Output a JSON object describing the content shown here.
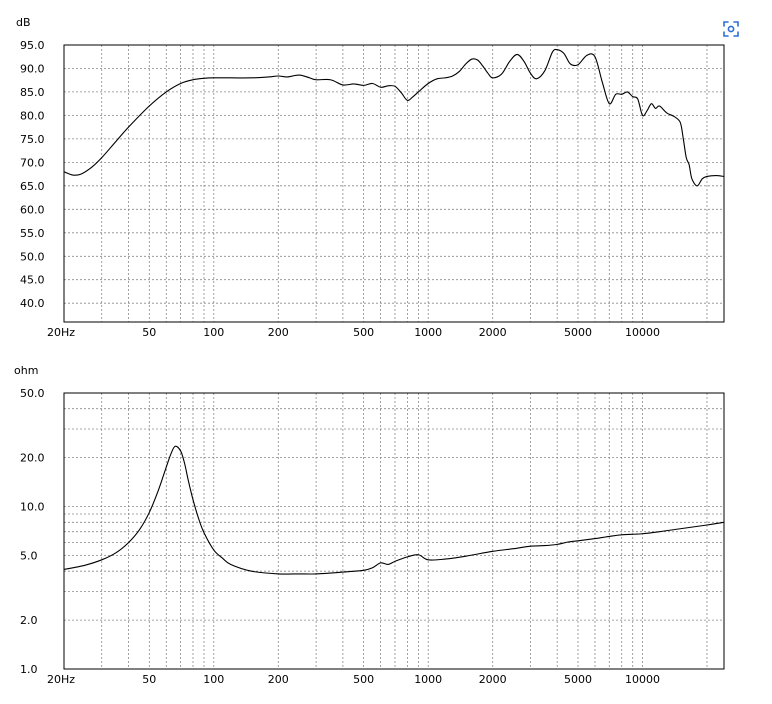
{
  "chart_data": [
    {
      "type": "line",
      "title": "",
      "ylabel": "dB",
      "xlabel": "",
      "x_scale": "log",
      "xlim": [
        20,
        24000
      ],
      "ylim": [
        36,
        95
      ],
      "y_scale": "linear",
      "grid": true,
      "y_ticks": [
        {
          "value": 95,
          "label": "95.0"
        },
        {
          "value": 90,
          "label": "90.0"
        },
        {
          "value": 85,
          "label": "85.0"
        },
        {
          "value": 80,
          "label": "80.0"
        },
        {
          "value": 75,
          "label": "75.0"
        },
        {
          "value": 70,
          "label": "70.0"
        },
        {
          "value": 65,
          "label": "65.0"
        },
        {
          "value": 60,
          "label": "60.0"
        },
        {
          "value": 55,
          "label": "55.0"
        },
        {
          "value": 50,
          "label": "50.0"
        },
        {
          "value": 45,
          "label": "45.0"
        },
        {
          "value": 40,
          "label": "40.0"
        }
      ],
      "x_ticks": [
        {
          "value": 20,
          "label": "20Hz"
        },
        {
          "value": 50,
          "label": "50"
        },
        {
          "value": 100,
          "label": "100"
        },
        {
          "value": 200,
          "label": "200"
        },
        {
          "value": 500,
          "label": "500"
        },
        {
          "value": 1000,
          "label": "1000"
        },
        {
          "value": 2000,
          "label": "2000"
        },
        {
          "value": 5000,
          "label": "5000"
        },
        {
          "value": 10000,
          "label": "10000"
        }
      ],
      "series": [
        {
          "x": [
            20,
            22,
            24,
            27,
            30,
            35,
            40,
            50,
            60,
            70,
            80,
            90,
            100,
            120,
            150,
            180,
            200,
            220,
            250,
            280,
            300,
            350,
            400,
            450,
            500,
            550,
            600,
            650,
            700,
            750,
            800,
            850,
            900,
            1000,
            1100,
            1200,
            1300,
            1400,
            1500,
            1600,
            1700,
            1800,
            1900,
            2000,
            2200,
            2400,
            2600,
            2800,
            3000,
            3200,
            3500,
            3800,
            4000,
            4300,
            4600,
            5000,
            5500,
            6000,
            6500,
            7000,
            7500,
            8000,
            8500,
            9000,
            9500,
            10000,
            10500,
            11000,
            11500,
            12000,
            13000,
            14000,
            15000,
            15500,
            16000,
            16500,
            17000,
            18000,
            19000,
            20000,
            22000,
            24000
          ],
          "y": [
            68,
            67.3,
            67.5,
            69,
            71,
            74.5,
            77.5,
            82,
            85,
            86.8,
            87.6,
            87.9,
            88,
            88,
            88,
            88.2,
            88.4,
            88.2,
            88.6,
            88,
            87.6,
            87.6,
            86.5,
            86.7,
            86.4,
            86.8,
            86,
            86.3,
            86.2,
            84.8,
            83.2,
            84,
            85,
            86.8,
            87.8,
            88,
            88.4,
            89.4,
            91,
            92,
            91.8,
            90.5,
            89,
            88,
            88.8,
            91.5,
            93,
            91.5,
            89,
            87.8,
            89.5,
            93.5,
            94,
            93.2,
            91,
            90.8,
            92.8,
            92.5,
            87,
            82.5,
            84.5,
            84.5,
            85,
            84,
            83.5,
            80,
            81,
            82.5,
            81.5,
            82,
            80.5,
            79.8,
            78.5,
            75,
            71,
            69.5,
            66.5,
            65,
            66.5,
            67,
            67.2,
            67
          ]
        }
      ]
    },
    {
      "type": "line",
      "title": "",
      "ylabel": "ohm",
      "xlabel": "",
      "x_scale": "log",
      "xlim": [
        20,
        24000
      ],
      "y_scale": "log",
      "ylim": [
        1,
        50
      ],
      "grid": true,
      "y_ticks": [
        {
          "value": 50,
          "label": "50.0"
        },
        {
          "value": 20,
          "label": "20.0"
        },
        {
          "value": 10,
          "label": "10.0"
        },
        {
          "value": 5,
          "label": "5.0"
        },
        {
          "value": 2,
          "label": "2.0"
        },
        {
          "value": 1,
          "label": "1.0"
        }
      ],
      "x_ticks": [
        {
          "value": 20,
          "label": "20Hz"
        },
        {
          "value": 50,
          "label": "50"
        },
        {
          "value": 100,
          "label": "100"
        },
        {
          "value": 200,
          "label": "200"
        },
        {
          "value": 500,
          "label": "500"
        },
        {
          "value": 1000,
          "label": "1000"
        },
        {
          "value": 2000,
          "label": "2000"
        },
        {
          "value": 5000,
          "label": "5000"
        },
        {
          "value": 10000,
          "label": "10000"
        }
      ],
      "series": [
        {
          "x": [
            20,
            25,
            30,
            35,
            40,
            45,
            50,
            55,
            60,
            63,
            66,
            70,
            73,
            76,
            80,
            85,
            90,
            100,
            110,
            120,
            150,
            200,
            250,
            300,
            400,
            500,
            550,
            600,
            650,
            700,
            800,
            900,
            1000,
            1200,
            1500,
            2000,
            2500,
            3000,
            3500,
            4000,
            4500,
            5000,
            6000,
            7000,
            8000,
            10000,
            12000,
            15000,
            20000,
            24000
          ],
          "y": [
            4.1,
            4.35,
            4.7,
            5.2,
            6,
            7.2,
            9.2,
            12.5,
            17.5,
            21,
            23.5,
            22,
            18.5,
            14.5,
            11,
            8.4,
            6.9,
            5.4,
            4.8,
            4.4,
            4,
            3.85,
            3.85,
            3.85,
            3.95,
            4.05,
            4.2,
            4.5,
            4.4,
            4.6,
            4.9,
            5.05,
            4.7,
            4.75,
            4.95,
            5.3,
            5.5,
            5.7,
            5.75,
            5.85,
            6.05,
            6.15,
            6.35,
            6.55,
            6.7,
            6.8,
            7,
            7.3,
            7.7,
            8
          ]
        }
      ]
    }
  ],
  "ui": {
    "focus_icon": "focus-scan-icon",
    "accent": "#2f6ed8"
  }
}
